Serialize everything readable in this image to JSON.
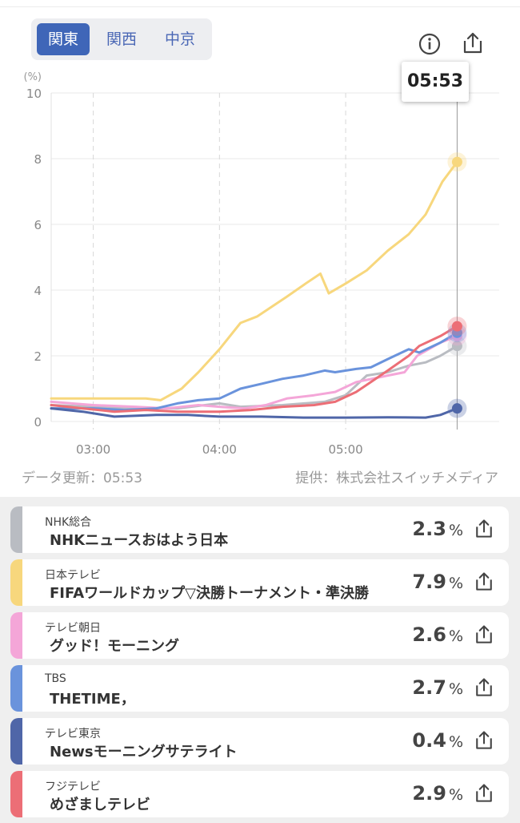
{
  "regions": [
    "関東",
    "関西",
    "中京"
  ],
  "active_region": 0,
  "tooltip_time": "05:53",
  "footer": {
    "updated": "データ更新：05:53",
    "provider": "提供：株式会社スイッチメディア"
  },
  "chart_data": {
    "type": "line",
    "ylabel": "(%)",
    "ylim": [
      0,
      10
    ],
    "yticks": [
      0,
      2,
      4,
      6,
      8,
      10
    ],
    "xlim_minutes": [
      160,
      280
    ],
    "xticks": [
      {
        "m": 180,
        "label": "03:00"
      },
      {
        "m": 240,
        "label": "04:00"
      },
      {
        "m": 300,
        "label": "05:00"
      }
    ],
    "cursor_minute": 353,
    "series": [
      {
        "name": "NHK総合",
        "color": "#b9bcc2",
        "points": [
          [
            160,
            0.5
          ],
          [
            180,
            0.45
          ],
          [
            200,
            0.4
          ],
          [
            220,
            0.4
          ],
          [
            240,
            0.55
          ],
          [
            250,
            0.45
          ],
          [
            270,
            0.5
          ],
          [
            290,
            0.6
          ],
          [
            300,
            0.8
          ],
          [
            310,
            1.4
          ],
          [
            320,
            1.5
          ],
          [
            330,
            1.7
          ],
          [
            338,
            1.8
          ],
          [
            345,
            2.0
          ],
          [
            353,
            2.3
          ]
        ]
      },
      {
        "name": "日本テレビ",
        "color": "#f7d77d",
        "points": [
          [
            160,
            0.7
          ],
          [
            175,
            0.7
          ],
          [
            190,
            0.7
          ],
          [
            205,
            0.7
          ],
          [
            212,
            0.65
          ],
          [
            222,
            1.0
          ],
          [
            230,
            1.5
          ],
          [
            240,
            2.2
          ],
          [
            250,
            3.0
          ],
          [
            258,
            3.2
          ],
          [
            265,
            3.5
          ],
          [
            272,
            3.8
          ],
          [
            281,
            4.2
          ],
          [
            288,
            4.5
          ],
          [
            292,
            3.9
          ],
          [
            300,
            4.2
          ],
          [
            310,
            4.6
          ],
          [
            320,
            5.2
          ],
          [
            330,
            5.7
          ],
          [
            338,
            6.3
          ],
          [
            346,
            7.3
          ],
          [
            353,
            7.9
          ]
        ]
      },
      {
        "name": "テレビ朝日",
        "color": "#f4a6d8",
        "points": [
          [
            160,
            0.6
          ],
          [
            180,
            0.5
          ],
          [
            200,
            0.45
          ],
          [
            215,
            0.4
          ],
          [
            230,
            0.5
          ],
          [
            240,
            0.45
          ],
          [
            252,
            0.4
          ],
          [
            262,
            0.5
          ],
          [
            272,
            0.7
          ],
          [
            285,
            0.8
          ],
          [
            295,
            0.9
          ],
          [
            305,
            1.2
          ],
          [
            320,
            1.4
          ],
          [
            328,
            1.5
          ],
          [
            334,
            2.0
          ],
          [
            345,
            2.4
          ],
          [
            353,
            2.6
          ]
        ]
      },
      {
        "name": "TBS",
        "color": "#6a93dc",
        "points": [
          [
            160,
            0.4
          ],
          [
            180,
            0.4
          ],
          [
            195,
            0.35
          ],
          [
            210,
            0.4
          ],
          [
            220,
            0.55
          ],
          [
            230,
            0.65
          ],
          [
            240,
            0.7
          ],
          [
            250,
            1.0
          ],
          [
            260,
            1.15
          ],
          [
            270,
            1.3
          ],
          [
            280,
            1.4
          ],
          [
            290,
            1.55
          ],
          [
            295,
            1.5
          ],
          [
            305,
            1.6
          ],
          [
            312,
            1.65
          ],
          [
            320,
            1.9
          ],
          [
            330,
            2.2
          ],
          [
            335,
            2.1
          ],
          [
            345,
            2.4
          ],
          [
            353,
            2.7
          ]
        ]
      },
      {
        "name": "テレビ東京",
        "color": "#4f66a8",
        "points": [
          [
            160,
            0.4
          ],
          [
            175,
            0.3
          ],
          [
            190,
            0.15
          ],
          [
            210,
            0.2
          ],
          [
            225,
            0.2
          ],
          [
            240,
            0.15
          ],
          [
            260,
            0.15
          ],
          [
            280,
            0.12
          ],
          [
            300,
            0.12
          ],
          [
            320,
            0.13
          ],
          [
            338,
            0.12
          ],
          [
            345,
            0.2
          ],
          [
            353,
            0.4
          ]
        ]
      },
      {
        "name": "フジテレビ",
        "color": "#ec6e76",
        "points": [
          [
            160,
            0.5
          ],
          [
            175,
            0.4
          ],
          [
            190,
            0.3
          ],
          [
            205,
            0.35
          ],
          [
            220,
            0.3
          ],
          [
            240,
            0.3
          ],
          [
            255,
            0.35
          ],
          [
            270,
            0.45
          ],
          [
            285,
            0.5
          ],
          [
            295,
            0.6
          ],
          [
            305,
            0.9
          ],
          [
            312,
            1.2
          ],
          [
            320,
            1.55
          ],
          [
            330,
            2.0
          ],
          [
            335,
            2.3
          ],
          [
            345,
            2.6
          ],
          [
            353,
            2.9
          ]
        ]
      }
    ]
  },
  "programs": [
    {
      "channel": "NHK総合",
      "program": "NHKニュースおはよう日本",
      "rating": "2.3",
      "unit": "%",
      "color": "#b9bcc2"
    },
    {
      "channel": "日本テレビ",
      "program": "FIFAワールドカップ▽決勝トーナメント・準決勝",
      "rating": "7.9",
      "unit": "%",
      "color": "#f7d77d"
    },
    {
      "channel": "テレビ朝日",
      "program": "グッド！モーニング",
      "rating": "2.6",
      "unit": "%",
      "color": "#f4a6d8"
    },
    {
      "channel": "TBS",
      "program": "THETIME，",
      "rating": "2.7",
      "unit": "%",
      "color": "#6a93dc"
    },
    {
      "channel": "テレビ東京",
      "program": "Newsモーニングサテライト",
      "rating": "0.4",
      "unit": "%",
      "color": "#4f66a8"
    },
    {
      "channel": "フジテレビ",
      "program": "めざましテレビ",
      "rating": "2.9",
      "unit": "%",
      "color": "#ec6e76"
    }
  ]
}
